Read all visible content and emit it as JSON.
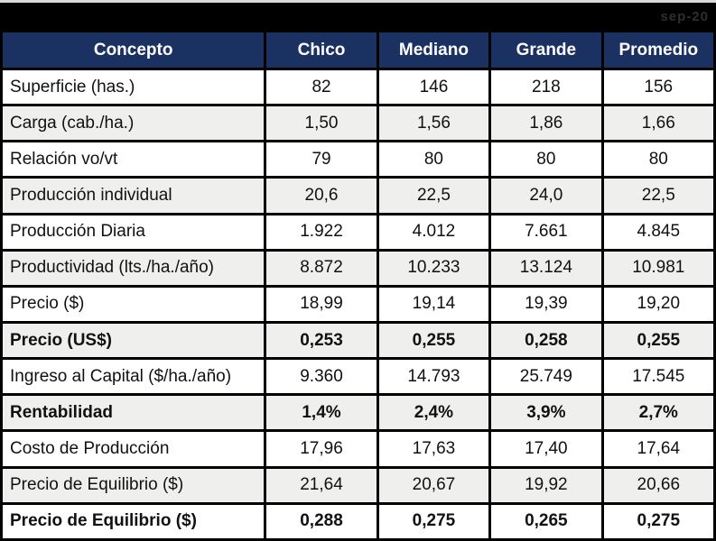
{
  "top_bar": {
    "watermark": "sep-20"
  },
  "chart_data": {
    "type": "table",
    "title": "",
    "columns": [
      "Concepto",
      "Chico",
      "Mediano",
      "Grande",
      "Promedio"
    ],
    "rows": [
      {
        "label": "Superficie (has.)",
        "values": [
          "82",
          "146",
          "218",
          "156"
        ],
        "bold": false
      },
      {
        "label": "Carga (cab./ha.)",
        "values": [
          "1,50",
          "1,56",
          "1,86",
          "1,66"
        ],
        "bold": false
      },
      {
        "label": "Relación vo/vt",
        "values": [
          "79",
          "80",
          "80",
          "80"
        ],
        "bold": false
      },
      {
        "label": "Producción individual",
        "values": [
          "20,6",
          "22,5",
          "24,0",
          "22,5"
        ],
        "bold": false
      },
      {
        "label": "Producción Diaria",
        "values": [
          "1.922",
          "4.012",
          "7.661",
          "4.845"
        ],
        "bold": false
      },
      {
        "label": "Productividad (lts./ha./año)",
        "values": [
          "8.872",
          "10.233",
          "13.124",
          "10.981"
        ],
        "bold": false
      },
      {
        "label": "Precio ($)",
        "values": [
          "18,99",
          "19,14",
          "19,39",
          "19,20"
        ],
        "bold": false
      },
      {
        "label": "Precio (US$)",
        "values": [
          "0,253",
          "0,255",
          "0,258",
          "0,255"
        ],
        "bold": true
      },
      {
        "label": "Ingreso al Capital ($/ha./año)",
        "values": [
          "9.360",
          "14.793",
          "25.749",
          "17.545"
        ],
        "bold": false
      },
      {
        "label": "Rentabilidad",
        "values": [
          "1,4%",
          "2,4%",
          "3,9%",
          "2,7%"
        ],
        "bold": true
      },
      {
        "label": "Costo de Producción",
        "values": [
          "17,96",
          "17,63",
          "17,40",
          "17,64"
        ],
        "bold": false
      },
      {
        "label": "Precio de Equilibrio ($)",
        "values": [
          "21,64",
          "20,67",
          "19,92",
          "20,66"
        ],
        "bold": false
      },
      {
        "label": "Precio de Equilibrio ($)",
        "values": [
          "0,288",
          "0,275",
          "0,265",
          "0,275"
        ],
        "bold": true
      }
    ]
  },
  "colors": {
    "header_bg": "#1B3161",
    "header_text": "#FFFFFF",
    "row_bg": "#FFFFFF",
    "row_alt_bg": "#EFEFED",
    "border": "#000000",
    "title_bar_bg": "#000000",
    "watermark_text": "#2E2E2E"
  }
}
